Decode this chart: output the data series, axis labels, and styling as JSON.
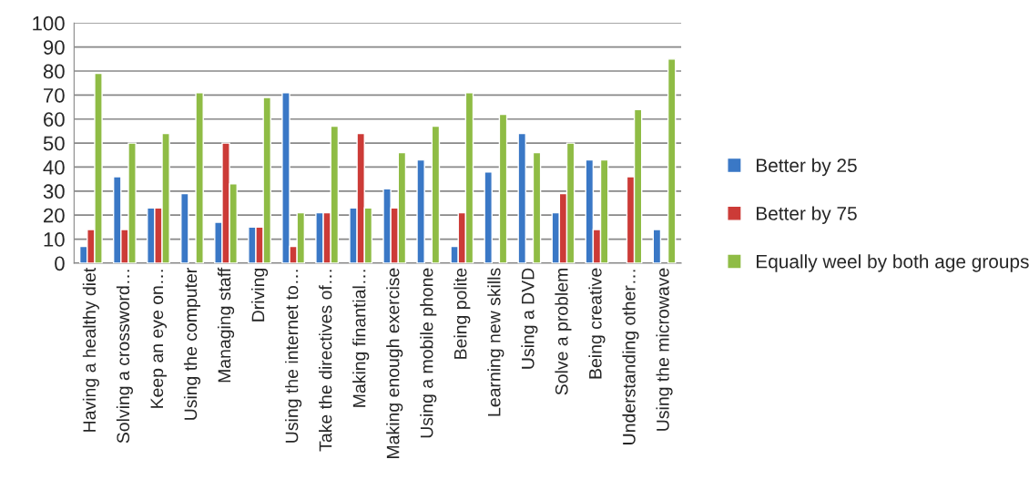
{
  "chart_data": {
    "type": "bar",
    "categories": [
      "Having a healthy diet",
      "Solving a crossword…",
      "Keep an eye on…",
      "Using the computer",
      "Managing staff",
      "Driving",
      "Using the internet to…",
      "Take the directives of…",
      "Making finantial…",
      "Making enough exercise",
      "Using a mobile phone",
      "Being polite",
      "Learning new skills",
      "Using a DVD",
      "Solve a problem",
      "Being creative",
      "Understanding other…",
      "Using the microwave"
    ],
    "series": [
      {
        "name": "Better by 25",
        "color": "#3a78c6",
        "values": [
          7,
          36,
          23,
          29,
          17,
          15,
          71,
          21,
          23,
          31,
          43,
          7,
          38,
          54,
          21,
          43,
          null,
          14
        ]
      },
      {
        "name": "Better by 75",
        "color": "#cc3b37",
        "values": [
          14,
          14,
          23,
          null,
          50,
          15,
          7,
          21,
          54,
          23,
          null,
          21,
          null,
          null,
          29,
          14,
          36,
          null
        ]
      },
      {
        "name": "Equally weel by both age groups",
        "color": "#8fbc45",
        "values": [
          79,
          50,
          54,
          71,
          33,
          69,
          21,
          57,
          23,
          46,
          57,
          71,
          62,
          46,
          50,
          43,
          64,
          85
        ]
      }
    ],
    "ylim": [
      0,
      100
    ],
    "yticks": [
      0,
      10,
      20,
      30,
      40,
      50,
      60,
      70,
      80,
      90,
      100
    ],
    "grid": "y",
    "legend": "right"
  }
}
